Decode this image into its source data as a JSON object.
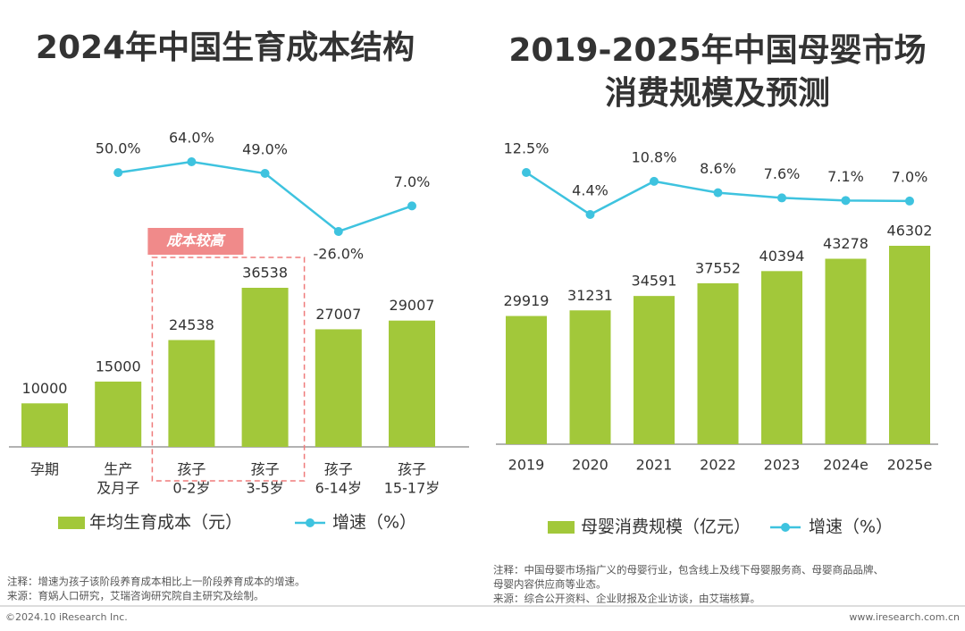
{
  "chart_data": [
    {
      "type": "bar",
      "title": [
        "2024年中国生育成本结构"
      ],
      "categories": [
        [
          "孕期"
        ],
        [
          "生产",
          "及月子"
        ],
        [
          "孩子",
          "0-2岁"
        ],
        [
          "孩子",
          "3-5岁"
        ],
        [
          "孩子",
          "6-14岁"
        ],
        [
          "孩子",
          "15-17岁"
        ]
      ],
      "series": [
        {
          "name": "年均生育成本（元）",
          "type": "bar",
          "color": "#a2c83a",
          "values": [
            10000,
            15000,
            24538,
            36538,
            27007,
            29007
          ]
        },
        {
          "name": "增速（%）",
          "type": "line",
          "color": "#3ec3df",
          "values": [
            null,
            50.0,
            64.0,
            49.0,
            -26.0,
            7.0
          ],
          "value_labels": [
            null,
            "50.0%",
            "64.0%",
            "49.0%",
            "-26.0%",
            "7.0%"
          ]
        }
      ],
      "annotation": "成本较高"
    },
    {
      "type": "bar",
      "title": [
        "2019-2025年中国母婴市场",
        "消费规模及预测"
      ],
      "categories": [
        [
          "2019"
        ],
        [
          "2020"
        ],
        [
          "2021"
        ],
        [
          "2022"
        ],
        [
          "2023"
        ],
        [
          "2024e"
        ],
        [
          "2025e"
        ]
      ],
      "series": [
        {
          "name": "母婴消费规模（亿元）",
          "type": "bar",
          "color": "#a2c83a",
          "values": [
            29919,
            31231,
            34591,
            37552,
            40394,
            43278,
            46302
          ]
        },
        {
          "name": "增速（%）",
          "type": "line",
          "color": "#3ec3df",
          "values": [
            12.5,
            4.4,
            10.8,
            8.6,
            7.6,
            7.1,
            7.0
          ],
          "value_labels": [
            "12.5%",
            "4.4%",
            "10.8%",
            "8.6%",
            "7.6%",
            "7.1%",
            "7.0%"
          ]
        }
      ]
    }
  ],
  "notes": {
    "left": [
      "注释：增速为孩子该阶段养育成本相比上一阶段养育成本的增速。",
      "来源：育娲人口研究，艾瑞咨询研究院自主研究及绘制。"
    ],
    "right": [
      "注释：中国母婴市场指广义的母婴行业，包含线上及线下母婴服务商、母婴商品品牌、",
      "母婴内容供应商等业态。",
      "来源：综合公开资料、企业财报及企业访谈，由艾瑞核算。"
    ]
  },
  "footer": {
    "copyright": "©2024.10 iResearch Inc.",
    "website": "www.iresearch.com.cn"
  }
}
